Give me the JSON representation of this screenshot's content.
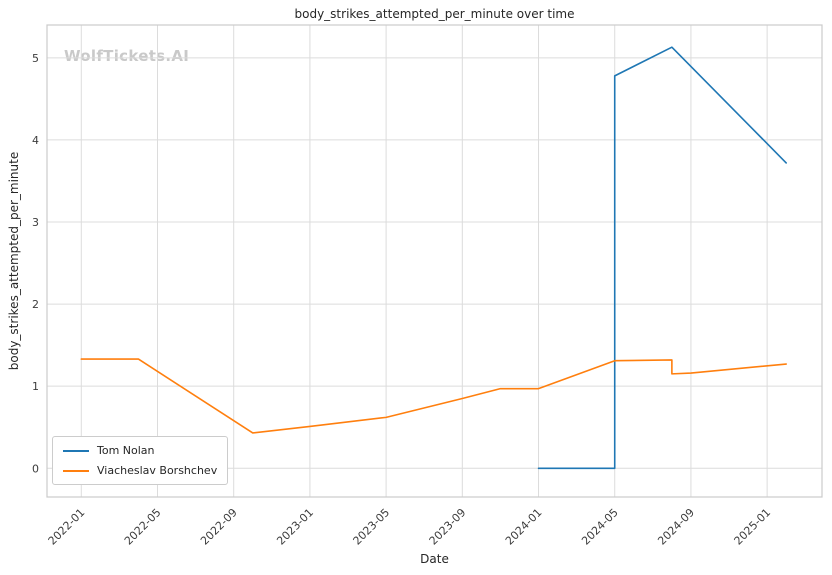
{
  "watermark": "WolfTickets.AI",
  "chart_data": {
    "type": "line",
    "title": "body_strikes_attempted_per_minute over time",
    "xlabel": "Date",
    "ylabel": "body_strikes_attempted_per_minute",
    "x_tick_labels": [
      "2022-01",
      "2022-05",
      "2022-09",
      "2023-01",
      "2023-05",
      "2023-09",
      "2024-01",
      "2024-05",
      "2024-09",
      "2025-01"
    ],
    "y_tick_labels": [
      "0",
      "1",
      "2",
      "3",
      "4",
      "5"
    ],
    "x_range_decimal_years": [
      2021.85,
      2025.24
    ],
    "y_range": [
      -0.35,
      5.4
    ],
    "grid": true,
    "legend_position": "lower left",
    "series": [
      {
        "name": "Tom Nolan",
        "color": "#1f77b4",
        "points": [
          [
            "2024-01",
            0.0
          ],
          [
            "2024-05",
            0.0
          ],
          [
            "2024-05",
            4.78
          ],
          [
            "2024-08",
            5.13
          ],
          [
            "2025-02",
            3.72
          ]
        ]
      },
      {
        "name": "Viacheslav Borshchev",
        "color": "#ff7f0e",
        "points": [
          [
            "2022-01",
            1.33
          ],
          [
            "2022-04",
            1.33
          ],
          [
            "2022-10",
            0.43
          ],
          [
            "2023-01",
            0.51
          ],
          [
            "2023-05",
            0.62
          ],
          [
            "2023-09",
            0.85
          ],
          [
            "2023-11",
            0.97
          ],
          [
            "2024-01",
            0.97
          ],
          [
            "2024-05",
            1.31
          ],
          [
            "2024-08",
            1.32
          ],
          [
            "2024-08",
            1.15
          ],
          [
            "2024-09",
            1.16
          ],
          [
            "2025-02",
            1.27
          ]
        ]
      }
    ]
  }
}
